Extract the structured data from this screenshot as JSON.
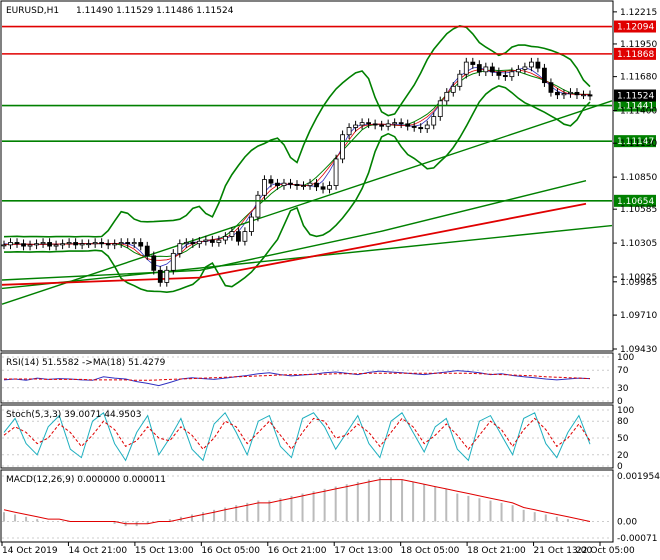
{
  "chart_data": [
    {
      "type": "candlestick",
      "title": "EURUSD,H1",
      "ohlc_text": "1.11490 1.11529 1.11486 1.11524",
      "y_ticks": [
        "1.12215",
        "1.11950",
        "1.11680",
        "1.11400",
        "1.11130",
        "1.10850",
        "1.10585",
        "1.10305",
        "1.10025",
        "1.09985",
        "1.09710",
        "1.09430"
      ],
      "ylim": [
        1.0943,
        1.1228
      ],
      "price_levels": [
        {
          "label": "1.12094",
          "value": 1.12094,
          "color": "#e00000"
        },
        {
          "label": "1.11868",
          "value": 1.11868,
          "color": "#e00000"
        },
        {
          "label": "1.11441",
          "value": 1.11441,
          "color": "#008000"
        },
        {
          "label": "1.11147",
          "value": 1.11147,
          "color": "#008000"
        },
        {
          "label": "1.10654",
          "value": 1.10654,
          "color": "#008000"
        }
      ],
      "current_price": {
        "label": "1.11524",
        "value": 1.11524
      },
      "close_series_approx": [
        1.1029,
        1.1031,
        1.103,
        1.1028,
        1.1029,
        1.103,
        1.1031,
        1.1028,
        1.1029,
        1.103,
        1.1031,
        1.1029,
        1.103,
        1.103,
        1.1031,
        1.103,
        1.1029,
        1.103,
        1.1031,
        1.103,
        1.1031,
        1.1028,
        1.102,
        1.1008,
        1.0998,
        1.1008,
        1.1022,
        1.103,
        1.1031,
        1.103,
        1.1032,
        1.1033,
        1.1031,
        1.1033,
        1.1036,
        1.104,
        1.1032,
        1.104,
        1.1052,
        1.107,
        1.1083,
        1.108,
        1.1078,
        1.108,
        1.1079,
        1.1078,
        1.1078,
        1.108,
        1.1077,
        1.1075,
        1.1078,
        1.11,
        1.112,
        1.1126,
        1.1128,
        1.113,
        1.1129,
        1.1128,
        1.1127,
        1.1129,
        1.113,
        1.1129,
        1.1127,
        1.1126,
        1.1125,
        1.1128,
        1.1135,
        1.1148,
        1.1155,
        1.116,
        1.117,
        1.118,
        1.1178,
        1.1172,
        1.1176,
        1.1172,
        1.1169,
        1.1168,
        1.1172,
        1.1174,
        1.1176,
        1.118,
        1.1175,
        1.1163,
        1.1155,
        1.1153,
        1.1154,
        1.1155,
        1.1153,
        1.1153,
        1.1152
      ]
    },
    {
      "type": "line",
      "title": "RSI(14) 51.5582  ->MA(18) 51.4279",
      "y_ticks": [
        "100",
        "70",
        "30",
        "0"
      ],
      "ylim": [
        0,
        100
      ],
      "series": [
        {
          "name": "RSI(14)",
          "last": 51.5582,
          "values": [
            48,
            50,
            47,
            52,
            49,
            51,
            50,
            48,
            47,
            55,
            52,
            50,
            44,
            40,
            35,
            42,
            50,
            53,
            51,
            49,
            52,
            55,
            58,
            62,
            64,
            60,
            57,
            59,
            61,
            64,
            66,
            63,
            60,
            65,
            68,
            66,
            64,
            62,
            60,
            63,
            66,
            69,
            67,
            64,
            60,
            62,
            58,
            55,
            53,
            50,
            48,
            50,
            52,
            51
          ]
        },
        {
          "name": "MA(18)",
          "last": 51.4279,
          "values": [
            50,
            50,
            50,
            50,
            49,
            49,
            49,
            49,
            48,
            48,
            48,
            48,
            47,
            47,
            48,
            49,
            50,
            51,
            52,
            53,
            54,
            55,
            56,
            57,
            58,
            59,
            60,
            60,
            61,
            61,
            62,
            62,
            62,
            63,
            63,
            63,
            63,
            63,
            63,
            63,
            63,
            63,
            63,
            62,
            61,
            60,
            59,
            58,
            57,
            55,
            54,
            53,
            52,
            51
          ]
        }
      ]
    },
    {
      "type": "line",
      "title": "Stoch(5,3,3) 39.0071 44.9503",
      "y_ticks": [
        "100",
        "80",
        "50",
        "20",
        "0"
      ],
      "ylim": [
        0,
        100
      ],
      "series": [
        {
          "name": "%K",
          "last": 39.0071,
          "values": [
            60,
            85,
            40,
            20,
            70,
            90,
            30,
            15,
            80,
            95,
            40,
            10,
            60,
            90,
            20,
            50,
            85,
            30,
            10,
            75,
            95,
            60,
            20,
            80,
            90,
            35,
            15,
            85,
            95,
            70,
            30,
            60,
            90,
            40,
            15,
            80,
            95,
            60,
            25,
            70,
            85,
            30,
            10,
            80,
            90,
            55,
            20,
            85,
            95,
            40,
            15,
            60,
            90,
            39
          ]
        },
        {
          "name": "%D",
          "last": 44.9503,
          "values": [
            55,
            70,
            60,
            40,
            50,
            75,
            60,
            35,
            55,
            80,
            65,
            35,
            45,
            70,
            50,
            45,
            70,
            55,
            30,
            50,
            80,
            70,
            40,
            60,
            80,
            55,
            30,
            60,
            85,
            80,
            50,
            55,
            75,
            60,
            35,
            60,
            85,
            70,
            40,
            55,
            75,
            55,
            30,
            55,
            80,
            65,
            35,
            65,
            85,
            65,
            35,
            50,
            75,
            45
          ]
        }
      ]
    },
    {
      "type": "bar",
      "title": "MACD(12,26,9) 0.000000 0.000011",
      "y_ticks": [
        "0.001954",
        "0.00",
        "-0.00071"
      ],
      "ylim": [
        -0.00071,
        0.001954
      ],
      "series": [
        {
          "name": "MACD",
          "last": 0.0,
          "values": [
            0.0004,
            0.0003,
            0.0002,
            0.0001,
            0.0,
            0.0,
            0.0,
            0.0,
            0.0,
            0.0,
            -0.0001,
            -0.0002,
            -0.0002,
            -0.0001,
            0.0,
            0.0001,
            0.0002,
            0.0003,
            0.0004,
            0.0005,
            0.0006,
            0.0007,
            0.0008,
            0.0009,
            0.0009,
            0.001,
            0.0011,
            0.0012,
            0.0013,
            0.0014,
            0.0015,
            0.0016,
            0.0017,
            0.0018,
            0.0019,
            0.0019,
            0.0018,
            0.0017,
            0.0016,
            0.0015,
            0.0014,
            0.0012,
            0.0011,
            0.001,
            0.0009,
            0.0008,
            0.0007,
            0.0005,
            0.0004,
            0.0003,
            0.0002,
            0.0001,
            0.0,
            0.0
          ]
        },
        {
          "name": "Signal",
          "last": 1.1e-05,
          "values": [
            0.0005,
            0.0004,
            0.0003,
            0.0002,
            0.0001,
            0.0001,
            0.0,
            0.0,
            0.0,
            0.0,
            0.0,
            -0.0001,
            -0.0001,
            -0.0001,
            0.0,
            0.0,
            0.0001,
            0.0002,
            0.0003,
            0.0004,
            0.0005,
            0.0006,
            0.0007,
            0.0008,
            0.0008,
            0.0009,
            0.001,
            0.0011,
            0.0012,
            0.0013,
            0.0014,
            0.0015,
            0.0016,
            0.0017,
            0.0018,
            0.0018,
            0.0018,
            0.0017,
            0.0016,
            0.0015,
            0.0014,
            0.0013,
            0.0012,
            0.0011,
            0.001,
            0.0009,
            0.0008,
            0.0006,
            0.0005,
            0.0004,
            0.0003,
            0.0002,
            0.0001,
            0.0
          ]
        }
      ]
    }
  ],
  "x_ticks": [
    "14 Oct 2019",
    "14 Oct 21:00",
    "15 Oct 13:00",
    "16 Oct 05:00",
    "16 Oct 21:00",
    "17 Oct 13:00",
    "18 Oct 05:00",
    "18 Oct 21:00",
    "21 Oct 13:00",
    "22 Oct 05:00"
  ],
  "colors": {
    "bull_candle": "#000000",
    "bear_candle": "#000000",
    "bollinger": "#008000",
    "resistance": "#e00000",
    "support": "#008000",
    "ma_red": "#e00000",
    "rsi": "#3030c0",
    "rsi_ma": "#e00000",
    "stoch_k": "#20b0c0",
    "stoch_d": "#e00000",
    "macd_hist": "#bbbbbb",
    "macd_signal": "#e00000"
  }
}
